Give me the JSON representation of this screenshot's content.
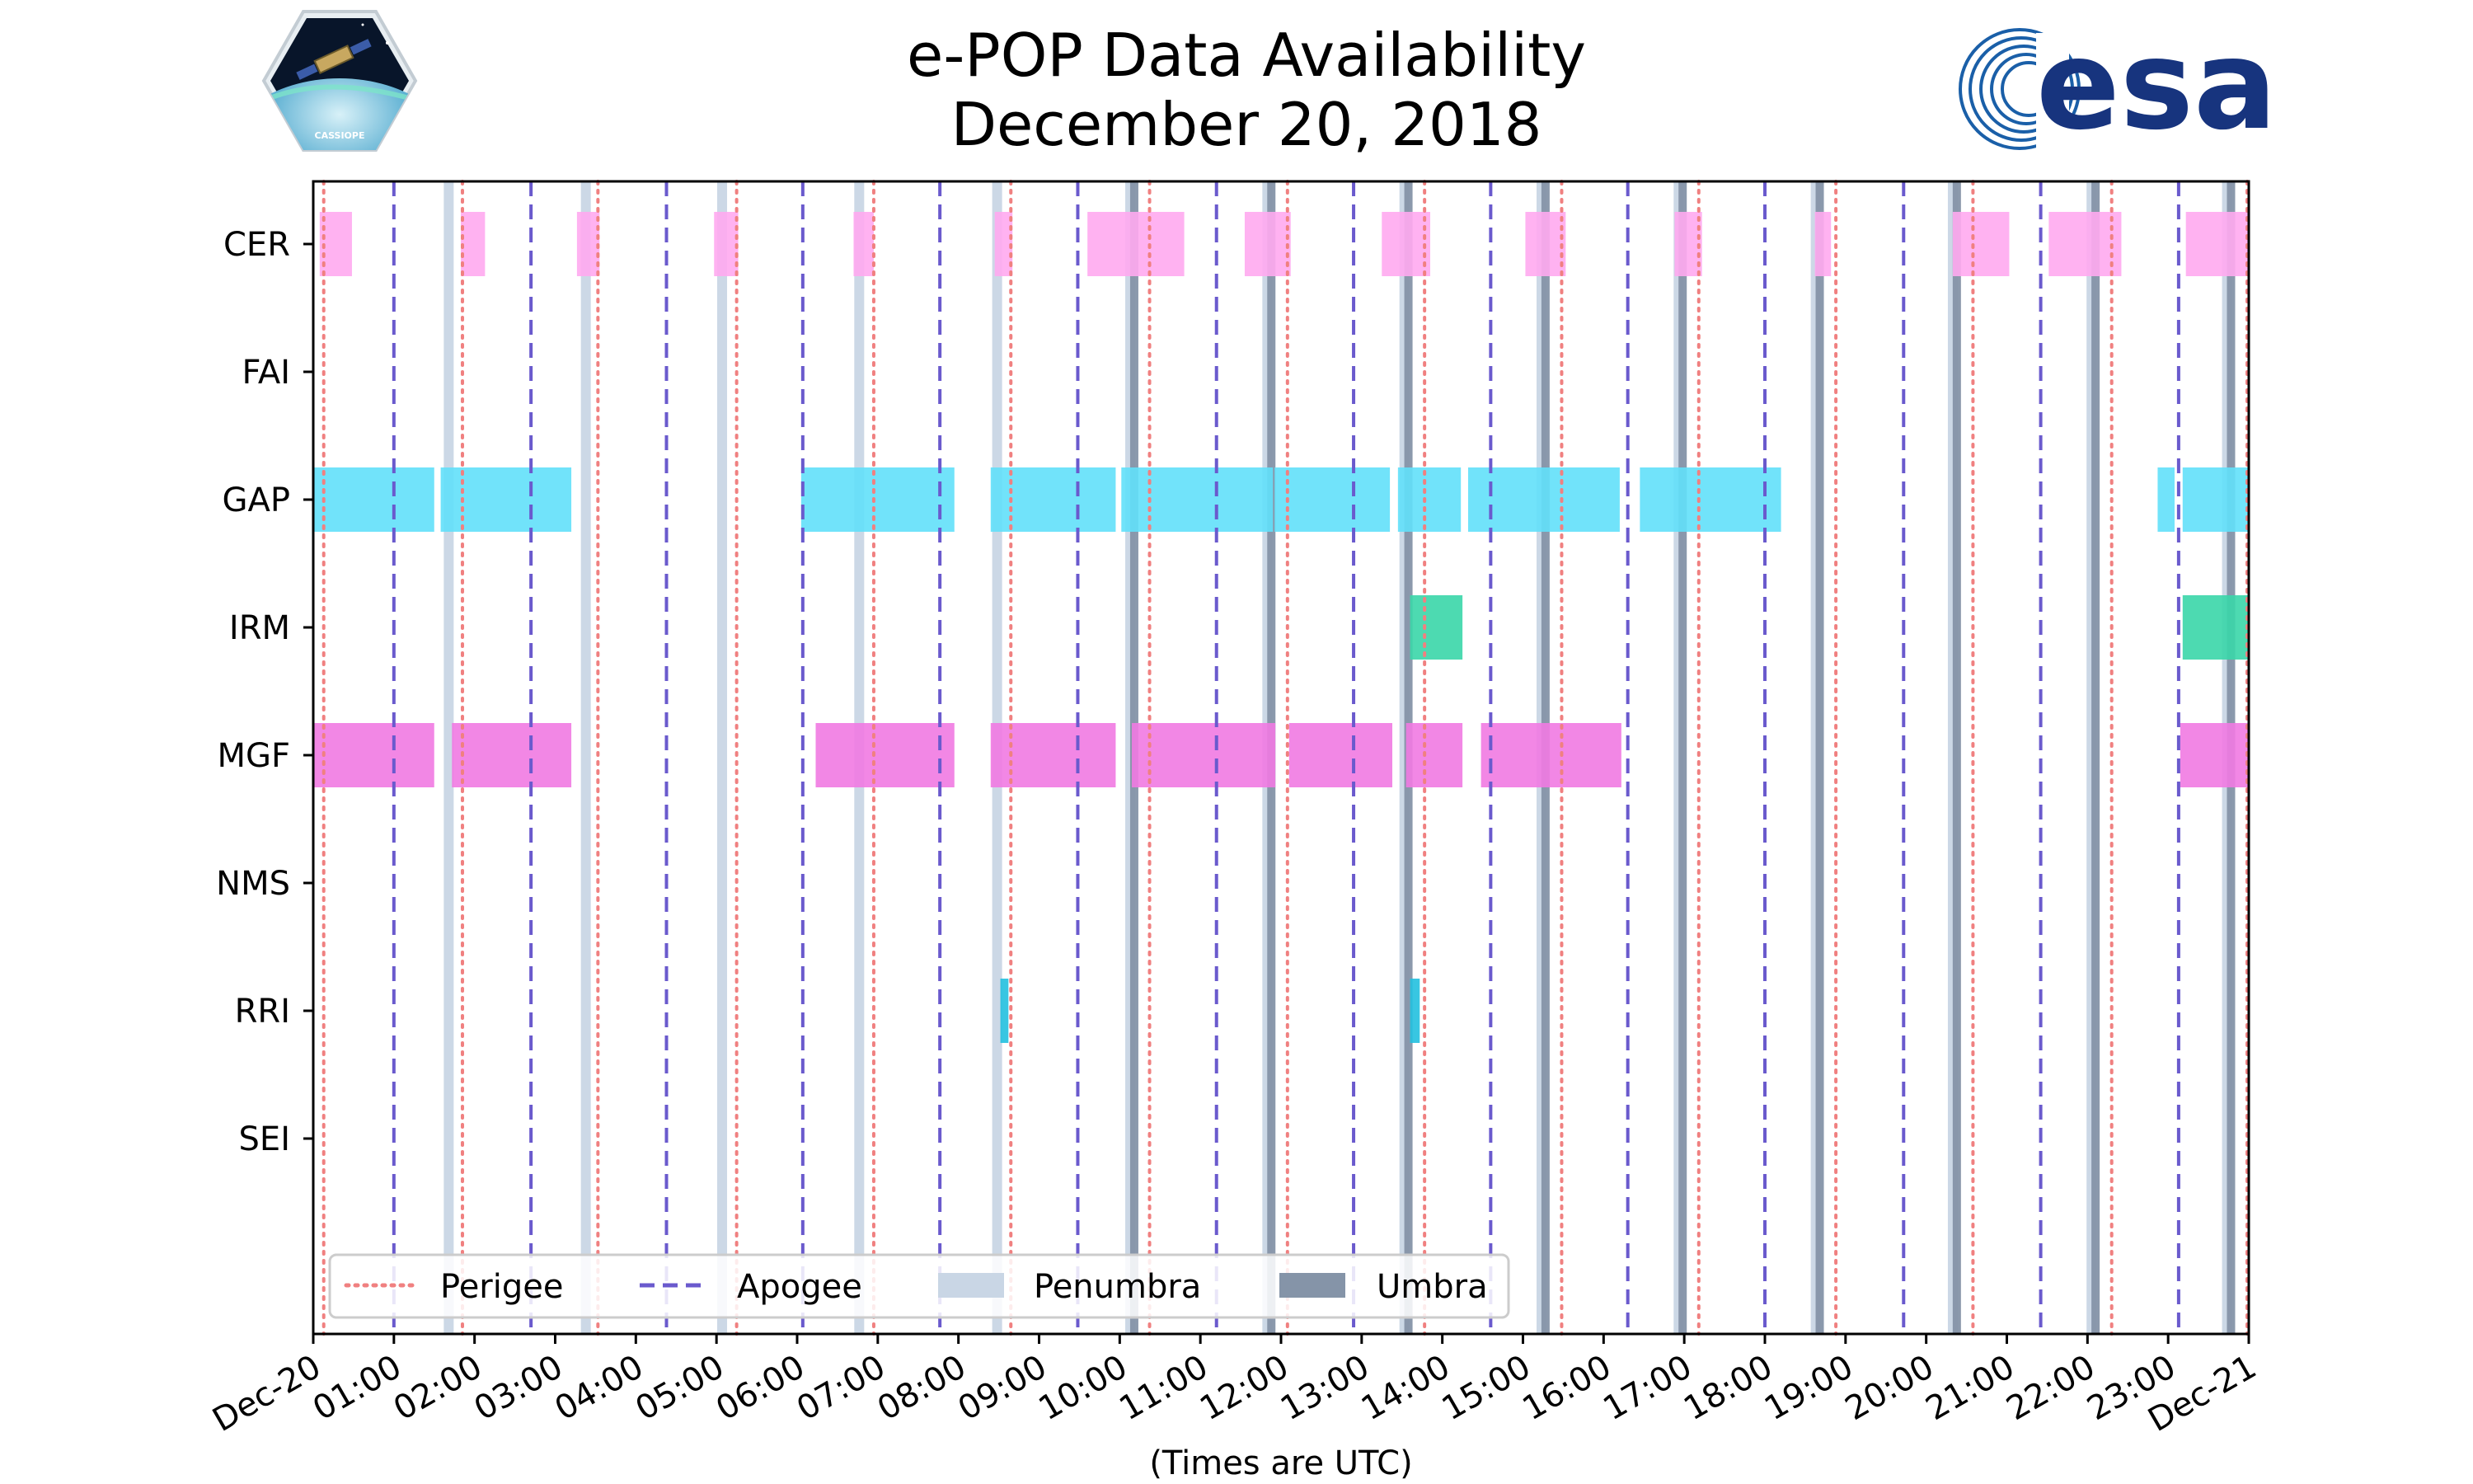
{
  "chart_data": {
    "type": "timeline",
    "title": [
      "e-POP Data Availability",
      "December 20, 2018"
    ],
    "xlabel": "(Times are UTC)",
    "x_unit": "hours UTC",
    "xlim": [
      0,
      24
    ],
    "x_tick_labels": [
      "Dec-20",
      "01:00",
      "02:00",
      "03:00",
      "04:00",
      "05:00",
      "06:00",
      "07:00",
      "08:00",
      "09:00",
      "10:00",
      "11:00",
      "12:00",
      "13:00",
      "14:00",
      "15:00",
      "16:00",
      "17:00",
      "18:00",
      "19:00",
      "20:00",
      "21:00",
      "22:00",
      "23:00",
      "Dec-21"
    ],
    "instruments": [
      "CER",
      "FAI",
      "GAP",
      "IRM",
      "MGF",
      "NMS",
      "RRI",
      "SEI"
    ],
    "colors": {
      "CER": "#ffaaf0",
      "GAP": "#62e0fa",
      "IRM": "#3ad6a8",
      "MGF": "#f17ae2",
      "RRI": "#22c0df",
      "perigee": "#f08080",
      "apogee": "#6a5acd",
      "penumbra": "#c9d6e5",
      "umbra": "#8594a8"
    },
    "availability": {
      "CER": [
        [
          0.08,
          0.48
        ],
        [
          1.83,
          2.13
        ],
        [
          3.27,
          3.55
        ],
        [
          4.97,
          5.27
        ],
        [
          6.7,
          6.95
        ],
        [
          8.45,
          8.67
        ],
        [
          9.6,
          10.8
        ],
        [
          11.55,
          12.12
        ],
        [
          13.25,
          13.85
        ],
        [
          15.03,
          15.53
        ],
        [
          16.88,
          17.22
        ],
        [
          18.62,
          18.82
        ],
        [
          20.33,
          21.03
        ],
        [
          21.52,
          22.42
        ],
        [
          23.22,
          24.0
        ]
      ],
      "FAI": [],
      "GAP": [
        [
          0.0,
          1.5
        ],
        [
          1.58,
          3.2
        ],
        [
          6.05,
          7.95
        ],
        [
          8.4,
          9.95
        ],
        [
          10.02,
          11.9
        ],
        [
          11.92,
          13.35
        ],
        [
          13.45,
          14.23
        ],
        [
          14.32,
          16.2
        ],
        [
          16.45,
          18.2
        ],
        [
          22.87,
          23.08
        ],
        [
          23.18,
          24.0
        ]
      ],
      "IRM": [
        [
          13.6,
          14.25
        ],
        [
          23.18,
          24.0
        ]
      ],
      "MGF": [
        [
          0.0,
          1.5
        ],
        [
          1.72,
          3.2
        ],
        [
          6.23,
          7.95
        ],
        [
          8.4,
          9.95
        ],
        [
          10.15,
          11.93
        ],
        [
          12.1,
          13.38
        ],
        [
          13.55,
          14.25
        ],
        [
          14.48,
          16.22
        ],
        [
          23.15,
          24.0
        ]
      ],
      "NMS": [],
      "RRI": [
        [
          8.52,
          8.62
        ],
        [
          13.6,
          13.72
        ]
      ],
      "SEI": []
    },
    "perigee": [
      0.13,
      1.85,
      3.53,
      5.25,
      6.95,
      8.65,
      10.37,
      12.08,
      13.78,
      15.48,
      17.18,
      18.88,
      20.58,
      22.3,
      23.98
    ],
    "apogee": [
      1.0,
      2.7,
      4.38,
      6.07,
      7.77,
      9.48,
      11.2,
      12.9,
      14.6,
      16.3,
      18.0,
      19.72,
      21.42,
      23.13
    ],
    "penumbra": [
      1.68,
      3.38,
      5.07,
      6.77,
      8.48,
      10.13,
      11.83,
      13.53,
      15.23,
      16.93,
      18.63,
      20.33,
      22.05,
      23.73
    ],
    "umbra": [
      10.18,
      11.88,
      13.58,
      15.28,
      16.98,
      18.68,
      20.38,
      22.1,
      23.78
    ],
    "legend": {
      "position": "lower-left",
      "entries": [
        "Perigee",
        "Apogee",
        "Penumbra",
        "Umbra"
      ]
    }
  },
  "logos": {
    "left": {
      "text": "CASSIOPE"
    },
    "right": {
      "text": "esa"
    }
  }
}
